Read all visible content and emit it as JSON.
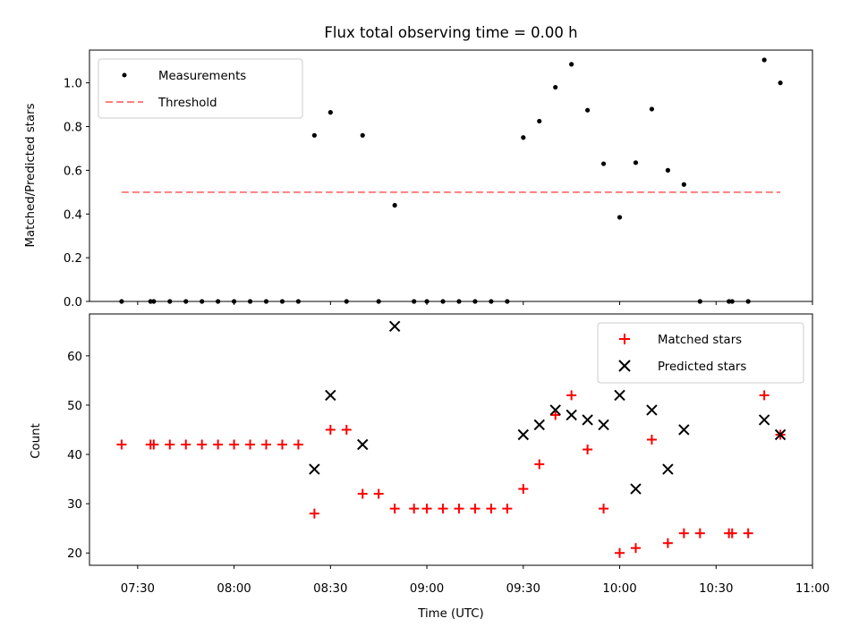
{
  "chart_data": [
    {
      "type": "scatter",
      "title": "Flux total observing time = 0.00 h",
      "xlabel": "",
      "ylabel": "Matched/Predicted stars",
      "ylim": [
        0,
        1.15
      ],
      "yticks": [
        "0.0",
        "0.2",
        "0.4",
        "0.6",
        "0.8",
        "1.0"
      ],
      "ytick_values": [
        0,
        0.2,
        0.4,
        0.6,
        0.8,
        1.0
      ],
      "legend_position": "top-left",
      "series": [
        {
          "name": "Measurements",
          "marker": "dot",
          "color": "#000000",
          "x": [
            "07:25",
            "07:34",
            "07:35",
            "07:40",
            "07:45",
            "07:50",
            "07:55",
            "08:00",
            "08:05",
            "08:10",
            "08:15",
            "08:20",
            "08:25",
            "08:30",
            "08:35",
            "08:40",
            "08:45",
            "08:50",
            "08:56",
            "09:00",
            "09:05",
            "09:10",
            "09:15",
            "09:20",
            "09:25",
            "09:30",
            "09:35",
            "09:40",
            "09:45",
            "09:50",
            "09:55",
            "10:00",
            "10:05",
            "10:10",
            "10:15",
            "10:20",
            "10:25",
            "10:34",
            "10:35",
            "10:40",
            "10:45",
            "10:50"
          ],
          "y": [
            0,
            0,
            0,
            0,
            0,
            0,
            0,
            0,
            0,
            0,
            0,
            0,
            0.76,
            0.865,
            0,
            0.76,
            0,
            0.44,
            0,
            0,
            0,
            0,
            0,
            0,
            0,
            0.75,
            0.825,
            0.98,
            1.085,
            0.875,
            0.63,
            0.385,
            0.635,
            0.88,
            0.6,
            0.535,
            0,
            0,
            0,
            0,
            1.105,
            1.0
          ]
        },
        {
          "name": "Threshold",
          "style": "dashed",
          "color": "#ff7f7f",
          "x": [
            "07:25",
            "10:50"
          ],
          "y": [
            0.5,
            0.5
          ]
        }
      ]
    },
    {
      "type": "scatter",
      "title": "",
      "xlabel": "Time (UTC)",
      "ylabel": "Count",
      "ylim": [
        17.5,
        68.5
      ],
      "yticks": [
        "20",
        "30",
        "40",
        "50",
        "60"
      ],
      "ytick_values": [
        20,
        30,
        40,
        50,
        60
      ],
      "xticks": [
        "07:30",
        "08:00",
        "08:30",
        "09:00",
        "09:30",
        "10:00",
        "10:30",
        "11:00"
      ],
      "xlim": [
        "07:15",
        "11:00"
      ],
      "legend_position": "top-right",
      "series": [
        {
          "name": "Matched stars",
          "marker": "plus",
          "color": "#ff0000",
          "x": [
            "07:25",
            "07:34",
            "07:35",
            "07:40",
            "07:45",
            "07:50",
            "07:55",
            "08:00",
            "08:05",
            "08:10",
            "08:15",
            "08:20",
            "08:25",
            "08:30",
            "08:35",
            "08:40",
            "08:45",
            "08:50",
            "08:56",
            "09:00",
            "09:05",
            "09:10",
            "09:15",
            "09:20",
            "09:25",
            "09:30",
            "09:35",
            "09:40",
            "09:45",
            "09:50",
            "09:55",
            "10:00",
            "10:05",
            "10:10",
            "10:15",
            "10:20",
            "10:25",
            "10:34",
            "10:35",
            "10:40",
            "10:45",
            "10:50"
          ],
          "y": [
            42,
            42,
            42,
            42,
            42,
            42,
            42,
            42,
            42,
            42,
            42,
            42,
            28,
            45,
            45,
            32,
            32,
            29,
            29,
            29,
            29,
            29,
            29,
            29,
            29,
            33,
            38,
            48,
            52,
            41,
            29,
            20,
            21,
            43,
            22,
            24,
            24,
            24,
            24,
            24,
            52,
            44
          ]
        },
        {
          "name": "Predicted stars",
          "marker": "x",
          "color": "#000000",
          "x": [
            "08:25",
            "08:30",
            "08:40",
            "08:50",
            "09:30",
            "09:35",
            "09:40",
            "09:45",
            "09:50",
            "09:55",
            "10:00",
            "10:05",
            "10:10",
            "10:15",
            "10:20",
            "10:45",
            "10:50"
          ],
          "y": [
            37,
            52,
            42,
            66,
            44,
            46,
            49,
            48,
            47,
            46,
            52,
            33,
            49,
            37,
            45,
            47,
            44
          ]
        }
      ]
    }
  ]
}
